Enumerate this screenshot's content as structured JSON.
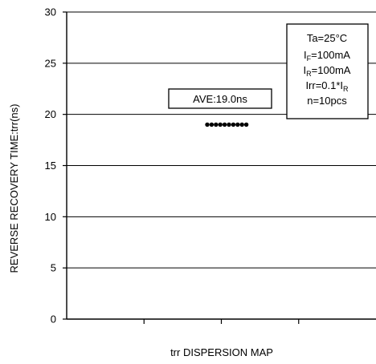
{
  "chart_data": {
    "type": "scatter",
    "title": "",
    "xlabel": "trr DISPERSION MAP",
    "ylabel": "REVERSE RECOVERY TIME:trr(ns)",
    "ylim": [
      0,
      30
    ],
    "yticks": [
      0,
      5,
      10,
      15,
      20,
      25,
      30
    ],
    "grid": true,
    "grid_axis": "y",
    "x_minor_tick_count": 4,
    "series": [
      {
        "values": [
          19.0,
          19.0,
          19.0,
          19.0,
          19.0,
          19.0,
          19.0,
          19.0,
          19.0,
          19.0
        ]
      }
    ],
    "average_annotation": "AVE:19.0ns",
    "conditions": {
      "ta": "Ta=25°C",
      "if_prefix": "I",
      "if_sub": "F",
      "if_value": "=100mA",
      "ir_prefix": "I",
      "ir_sub": "R",
      "ir_value": "=100mA",
      "irr_prefix": "Irr=0.1*I",
      "irr_sub": "R",
      "n": "n=10pcs"
    }
  }
}
